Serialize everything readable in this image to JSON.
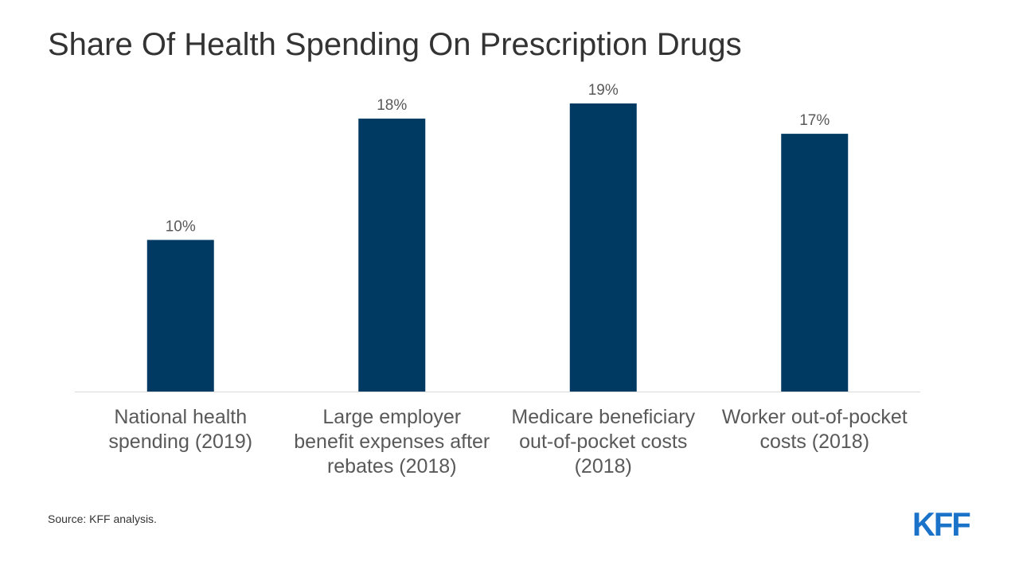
{
  "header": {
    "title": "Share Of Health Spending On Prescription Drugs"
  },
  "chart_data": {
    "type": "bar",
    "title": "Share Of Health Spending On Prescription Drugs",
    "categories": [
      [
        "National health",
        "spending (2019)"
      ],
      [
        "Large employer",
        "benefit expenses after",
        "rebates (2018)"
      ],
      [
        "Medicare beneficiary",
        "out-of-pocket costs",
        "(2018)"
      ],
      [
        "Worker out-of-pocket",
        "costs (2018)"
      ]
    ],
    "values": [
      10,
      18,
      19,
      17
    ],
    "data_labels": [
      "10%",
      "18%",
      "19%",
      "17%"
    ],
    "ylim": [
      0,
      19
    ],
    "xlabel": "",
    "ylabel": "",
    "grid": false,
    "bar_color": "#003a63",
    "axis_color": "#d9d9d9",
    "label_color": "#595959"
  },
  "footer": {
    "source": "Source: KFF analysis.",
    "logo_text": "KFF",
    "logo_color": "#1a72c9"
  }
}
